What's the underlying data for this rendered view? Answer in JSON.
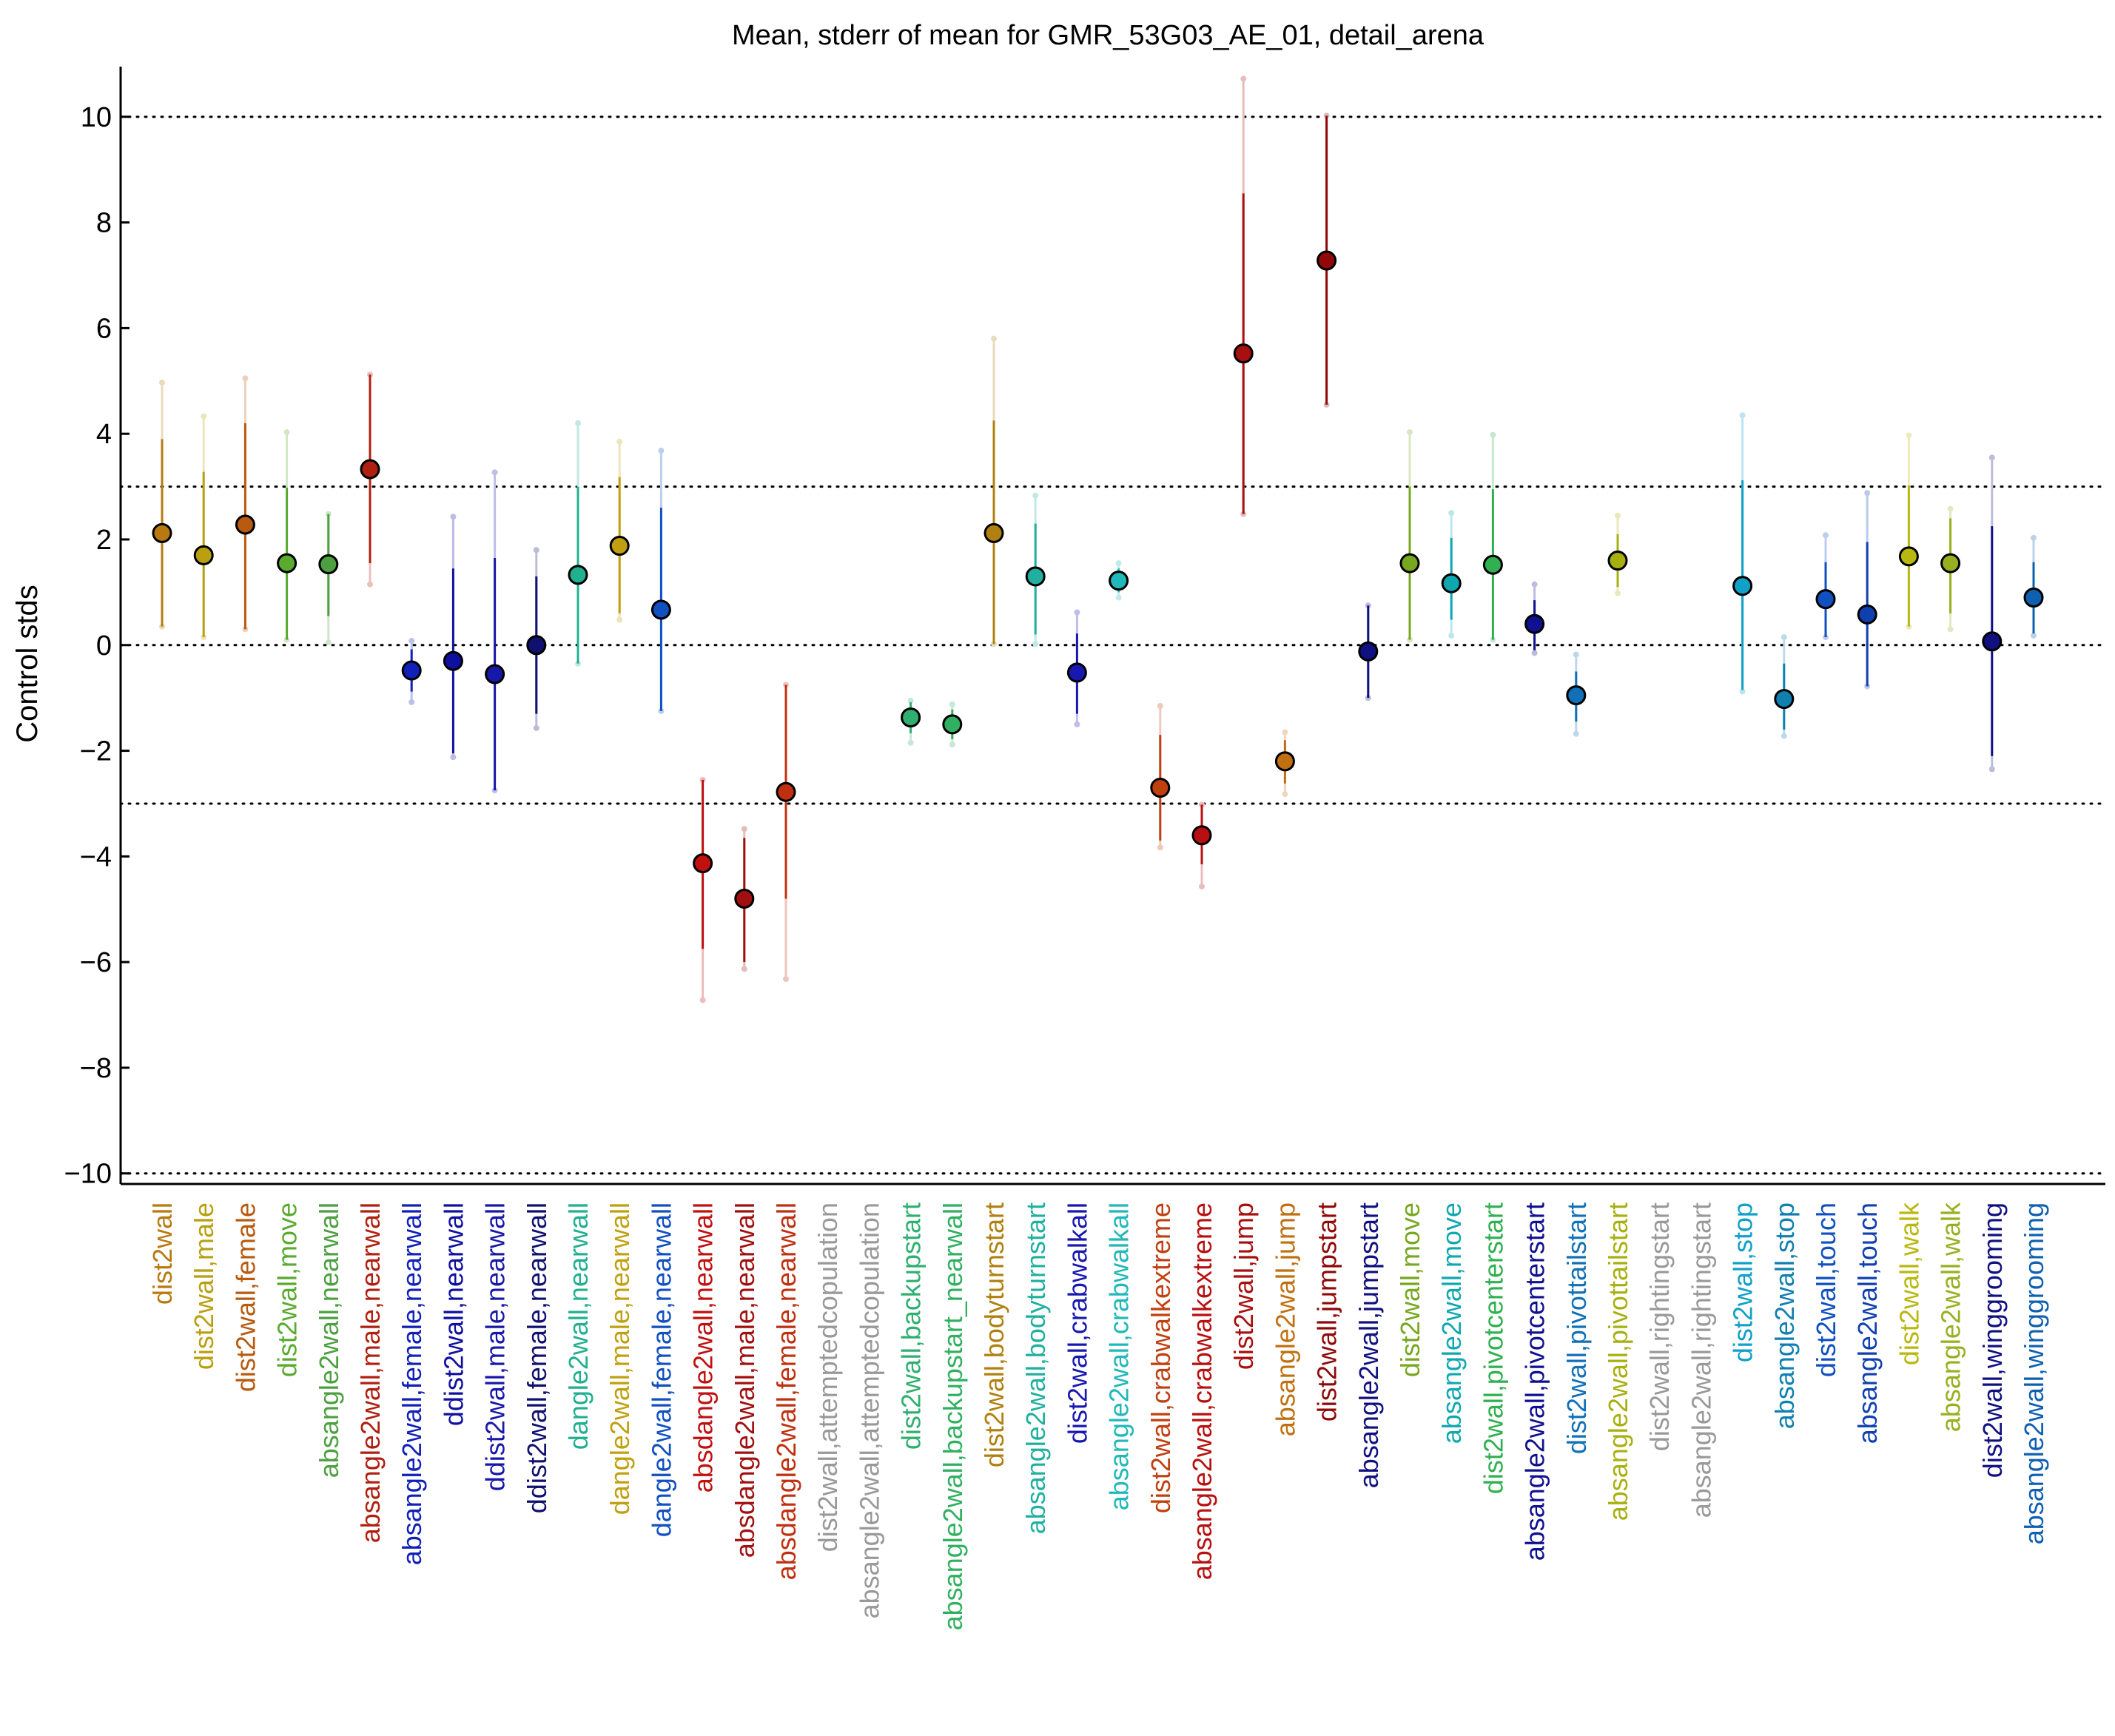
{
  "chart_data": {
    "type": "scatter",
    "title": "Mean, stderr of mean for GMR_53G03_AE_01, detail_arena",
    "xlabel": "",
    "ylabel": "Control stds",
    "ylim": [
      -10.2,
      10.95
    ],
    "yticks": [
      10,
      8,
      6,
      4,
      2,
      0,
      -2,
      -4,
      -6,
      -8,
      -10
    ],
    "ytick_labels": [
      "10",
      "8",
      "6",
      "4",
      "2",
      "0",
      "−2",
      "−4",
      "−6",
      "−8",
      "−10"
    ],
    "reference_lines": [
      10,
      3,
      0,
      -3,
      -10
    ],
    "grid": false,
    "legend": "none",
    "points": [
      {
        "label": "dist2wall",
        "color": "#b87a10",
        "mean": 2.12,
        "se_low": 0.35,
        "se_high": 3.9,
        "ext_low": 0.35,
        "ext_high": 4.97
      },
      {
        "label": "dist2wall,male",
        "color": "#b8a010",
        "mean": 1.7,
        "se_low": 0.15,
        "se_high": 3.28,
        "ext_low": 0.15,
        "ext_high": 4.33
      },
      {
        "label": "dist2wall,female",
        "color": "#b85a10",
        "mean": 2.28,
        "se_low": 0.3,
        "se_high": 4.2,
        "ext_low": 0.3,
        "ext_high": 5.05
      },
      {
        "label": "dist2wall,move",
        "color": "#5aaa30",
        "mean": 1.55,
        "se_low": 0.1,
        "se_high": 2.98,
        "ext_low": 0.1,
        "ext_high": 4.03
      },
      {
        "label": "absangle2wall,nearwall",
        "color": "#4ca040",
        "mean": 1.53,
        "se_low": 0.55,
        "se_high": 2.48,
        "ext_low": 0.05,
        "ext_high": 2.48
      },
      {
        "label": "absangle2wall,male,nearwall",
        "color": "#b02010",
        "mean": 3.33,
        "se_low": 1.55,
        "se_high": 5.12,
        "ext_low": 1.15,
        "ext_high": 5.12
      },
      {
        "label": "absangle2wall,female,nearwall",
        "color": "#1020b8",
        "mean": -0.48,
        "se_low": -0.88,
        "se_high": -0.08,
        "ext_low": -1.08,
        "ext_high": 0.08
      },
      {
        "label": "ddist2wall,nearwall",
        "color": "#1010a0",
        "mean": -0.3,
        "se_low": -2.05,
        "se_high": 1.45,
        "ext_low": -2.12,
        "ext_high": 2.43
      },
      {
        "label": "ddist2wall,male,nearwall",
        "color": "#1818a8",
        "mean": -0.55,
        "se_low": -2.75,
        "se_high": 1.65,
        "ext_low": -2.75,
        "ext_high": 3.27
      },
      {
        "label": "ddist2wall,female,nearwall",
        "color": "#101070",
        "mean": 0.0,
        "se_low": -1.3,
        "se_high": 1.3,
        "ext_low": -1.57,
        "ext_high": 1.8
      },
      {
        "label": "dangle2wall,nearwall",
        "color": "#20b090",
        "mean": 1.33,
        "se_low": -0.35,
        "se_high": 3.0,
        "ext_low": -0.35,
        "ext_high": 4.2
      },
      {
        "label": "dangle2wall,male,nearwall",
        "color": "#c0a010",
        "mean": 1.88,
        "se_low": 0.6,
        "se_high": 3.18,
        "ext_low": 0.48,
        "ext_high": 3.85
      },
      {
        "label": "dangle2wall,female,nearwall",
        "color": "#1050c0",
        "mean": 0.67,
        "se_low": -1.25,
        "se_high": 2.6,
        "ext_low": -1.25,
        "ext_high": 3.68
      },
      {
        "label": "absdangle2wall,nearwall",
        "color": "#c01010",
        "mean": -4.13,
        "se_low": -5.75,
        "se_high": -2.55,
        "ext_low": -6.72,
        "ext_high": -2.55
      },
      {
        "label": "absdangle2wall,male,nearwall",
        "color": "#a01010",
        "mean": -4.8,
        "se_low": -6.0,
        "se_high": -3.65,
        "ext_low": -6.13,
        "ext_high": -3.48
      },
      {
        "label": "absdangle2wall,female,nearwall",
        "color": "#c03010",
        "mean": -2.78,
        "se_low": -4.8,
        "se_high": -0.75,
        "ext_low": -6.32,
        "ext_high": -0.75
      },
      {
        "label": "dist2wall,attemptedcopulation",
        "color": "#999999",
        "mean": null
      },
      {
        "label": "absangle2wall,attemptedcopulation",
        "color": "#999999",
        "mean": null
      },
      {
        "label": "dist2wall,backupstart",
        "color": "#30b070",
        "mean": -1.37,
        "se_low": -1.67,
        "se_high": -1.08,
        "ext_low": -1.85,
        "ext_high": -1.05
      },
      {
        "label": "absangle2wall,backupstart_nearwall",
        "color": "#30b060",
        "mean": -1.5,
        "se_low": -1.78,
        "se_high": -1.22,
        "ext_low": -1.88,
        "ext_high": -1.12
      },
      {
        "label": "dist2wall,bodyturnstart",
        "color": "#b08010",
        "mean": 2.12,
        "se_low": 0.02,
        "se_high": 4.25,
        "ext_low": 0.02,
        "ext_high": 5.8
      },
      {
        "label": "absangle2wall,bodyturnstart",
        "color": "#20b0a0",
        "mean": 1.3,
        "se_low": 0.2,
        "se_high": 2.3,
        "ext_low": 0.02,
        "ext_high": 2.83
      },
      {
        "label": "dist2wall,crabwalkall",
        "color": "#1818b0",
        "mean": -0.52,
        "se_low": -1.3,
        "se_high": 0.22,
        "ext_low": -1.5,
        "ext_high": 0.62
      },
      {
        "label": "absangle2wall,crabwalkall",
        "color": "#20b8b8",
        "mean": 1.22,
        "se_low": 1.0,
        "se_high": 1.45,
        "ext_low": 0.9,
        "ext_high": 1.55
      },
      {
        "label": "dist2wall,crabwalkextreme",
        "color": "#c04010",
        "mean": -2.7,
        "se_low": -3.7,
        "se_high": -1.7,
        "ext_low": -3.83,
        "ext_high": -1.15
      },
      {
        "label": "absangle2wall,crabwalkextreme",
        "color": "#b81010",
        "mean": -3.6,
        "se_low": -4.15,
        "se_high": -3.02,
        "ext_low": -4.57,
        "ext_high": -3.02
      },
      {
        "label": "dist2wall,jump",
        "color": "#a81010",
        "mean": 5.52,
        "se_low": 2.48,
        "se_high": 8.55,
        "ext_low": 2.48,
        "ext_high": 10.72
      },
      {
        "label": "absangle2wall,jump",
        "color": "#c07010",
        "mean": -2.2,
        "se_low": -2.62,
        "se_high": -1.8,
        "ext_low": -2.82,
        "ext_high": -1.65
      },
      {
        "label": "dist2wall,jumpstart",
        "color": "#900808",
        "mean": 7.28,
        "se_low": 4.55,
        "se_high": 10.02,
        "ext_low": 4.55,
        "ext_high": 10.02
      },
      {
        "label": "absangle2wall,jumpstart",
        "color": "#101080",
        "mean": -0.12,
        "se_low": -1.0,
        "se_high": 0.75,
        "ext_low": -1.0,
        "ext_high": 0.75
      },
      {
        "label": "dist2wall,move",
        "color": "#78a820",
        "mean": 1.55,
        "se_low": 0.1,
        "se_high": 3.0,
        "ext_low": 0.1,
        "ext_high": 4.03
      },
      {
        "label": "absangle2wall,move",
        "color": "#10a8b0",
        "mean": 1.17,
        "se_low": 0.48,
        "se_high": 2.03,
        "ext_low": 0.18,
        "ext_high": 2.5
      },
      {
        "label": "dist2wall,pivotcenterstart",
        "color": "#30b050",
        "mean": 1.52,
        "se_low": 0.1,
        "se_high": 2.95,
        "ext_low": 0.1,
        "ext_high": 3.98
      },
      {
        "label": "absangle2wall,pivotcenterstart",
        "color": "#101090",
        "mean": 0.4,
        "se_low": -0.1,
        "se_high": 0.85,
        "ext_low": -0.15,
        "ext_high": 1.15
      },
      {
        "label": "dist2wall,pivottailstart",
        "color": "#1070b8",
        "mean": -0.95,
        "se_low": -1.45,
        "se_high": -0.5,
        "ext_low": -1.68,
        "ext_high": -0.18
      },
      {
        "label": "absangle2wall,pivottailstart",
        "color": "#a8b010",
        "mean": 1.6,
        "se_low": 1.1,
        "se_high": 2.1,
        "ext_low": 0.98,
        "ext_high": 2.45
      },
      {
        "label": "dist2wall,rightingstart",
        "color": "#999999",
        "mean": null
      },
      {
        "label": "absangle2wall,rightingstart",
        "color": "#999999",
        "mean": null
      },
      {
        "label": "dist2wall,stop",
        "color": "#10a0c8",
        "mean": 1.12,
        "se_low": -0.85,
        "se_high": 3.12,
        "ext_low": -0.88,
        "ext_high": 4.35
      },
      {
        "label": "absangle2wall,stop",
        "color": "#1080b0",
        "mean": -1.02,
        "se_low": -1.6,
        "se_high": -0.35,
        "ext_low": -1.72,
        "ext_high": 0.15
      },
      {
        "label": "dist2wall,touch",
        "color": "#1050c0",
        "mean": 0.87,
        "se_low": 0.15,
        "se_high": 1.57,
        "ext_low": 0.15,
        "ext_high": 2.08
      },
      {
        "label": "absangle2wall,touch",
        "color": "#1040b0",
        "mean": 0.58,
        "se_low": -0.78,
        "se_high": 1.95,
        "ext_low": -0.78,
        "ext_high": 2.88
      },
      {
        "label": "dist2wall,walk",
        "color": "#b8b810",
        "mean": 1.68,
        "se_low": 0.35,
        "se_high": 3.02,
        "ext_low": 0.35,
        "ext_high": 3.97
      },
      {
        "label": "absangle2wall,walk",
        "color": "#98b020",
        "mean": 1.55,
        "se_low": 0.6,
        "se_high": 2.4,
        "ext_low": 0.3,
        "ext_high": 2.58
      },
      {
        "label": "dist2wall,winggrooming",
        "color": "#101080",
        "mean": 0.07,
        "se_low": -2.1,
        "se_high": 2.25,
        "ext_low": -2.35,
        "ext_high": 3.55
      },
      {
        "label": "absangle2wall,winggrooming",
        "color": "#1060b0",
        "mean": 0.9,
        "se_low": 0.22,
        "se_high": 1.57,
        "ext_low": 0.18,
        "ext_high": 2.03
      }
    ]
  }
}
